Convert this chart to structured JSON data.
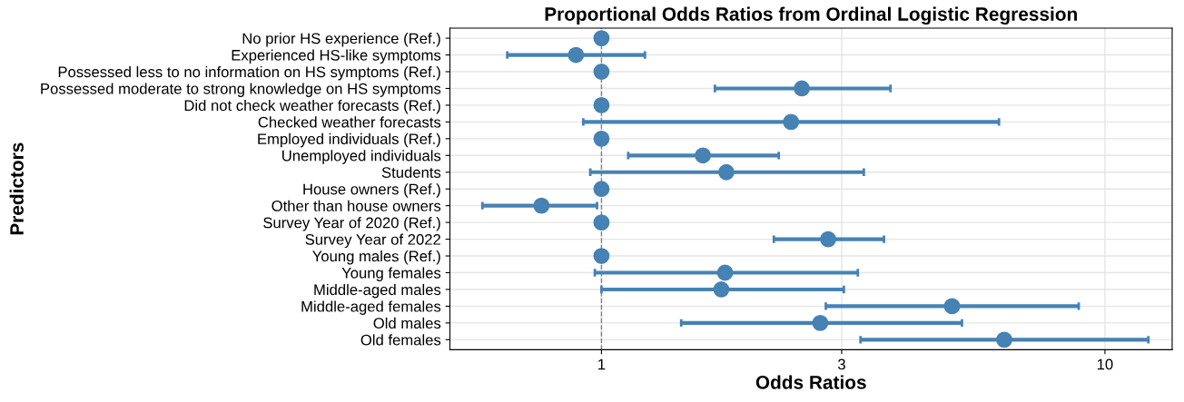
{
  "chart_data": {
    "type": "scatter",
    "orientation": "horizontal",
    "title": "Proportional Odds Ratios from Ordinal Logistic Regression",
    "xlabel": "Odds Ratios",
    "ylabel": "Predictors",
    "log": "x",
    "categories": [
      "No prior HS experience (Ref.)",
      "Experienced HS-like symptoms",
      "Possessed less to no information on HS symptoms (Ref.)",
      "Possessed moderate to strong knowledge on HS symptoms",
      "Did not check weather forecasts (Ref.)",
      "Checked weather forecasts",
      "Employed individuals (Ref.)",
      "Unemployed individuals",
      "Students",
      "House owners (Ref.)",
      "Other than house owners",
      "Survey Year of 2020 (Ref.)",
      "Survey Year of 2022",
      "Young males (Ref.)",
      "Young females",
      "Middle-aged males",
      "Middle-aged females",
      "Old males",
      "Old females"
    ],
    "values": [
      1,
      0.89,
      1,
      2.5,
      1,
      2.38,
      1,
      1.59,
      1.77,
      1,
      0.76,
      1,
      2.82,
      1,
      1.76,
      1.73,
      4.97,
      2.72,
      6.31
    ],
    "errors": [
      null,
      [
        0.65,
        1.22
      ],
      null,
      [
        1.68,
        3.75
      ],
      null,
      [
        0.92,
        6.16
      ],
      null,
      [
        1.13,
        2.25
      ],
      [
        0.95,
        3.32
      ],
      null,
      [
        0.58,
        0.98
      ],
      null,
      [
        2.2,
        3.64
      ],
      null,
      [
        0.97,
        3.23
      ],
      [
        1.0,
        3.03
      ],
      [
        2.79,
        8.87
      ],
      [
        1.44,
        5.2
      ],
      [
        3.27,
        12.2
      ]
    ],
    "color": "#4682b4",
    "marker": "circle",
    "xlim": [
      0.5,
      13.6
    ],
    "xticks": [
      1,
      3,
      10
    ],
    "grid": true,
    "ref_lines": [
      {
        "axis": "x",
        "value": 1,
        "color": "#808080",
        "line_style": "dashed"
      }
    ]
  }
}
